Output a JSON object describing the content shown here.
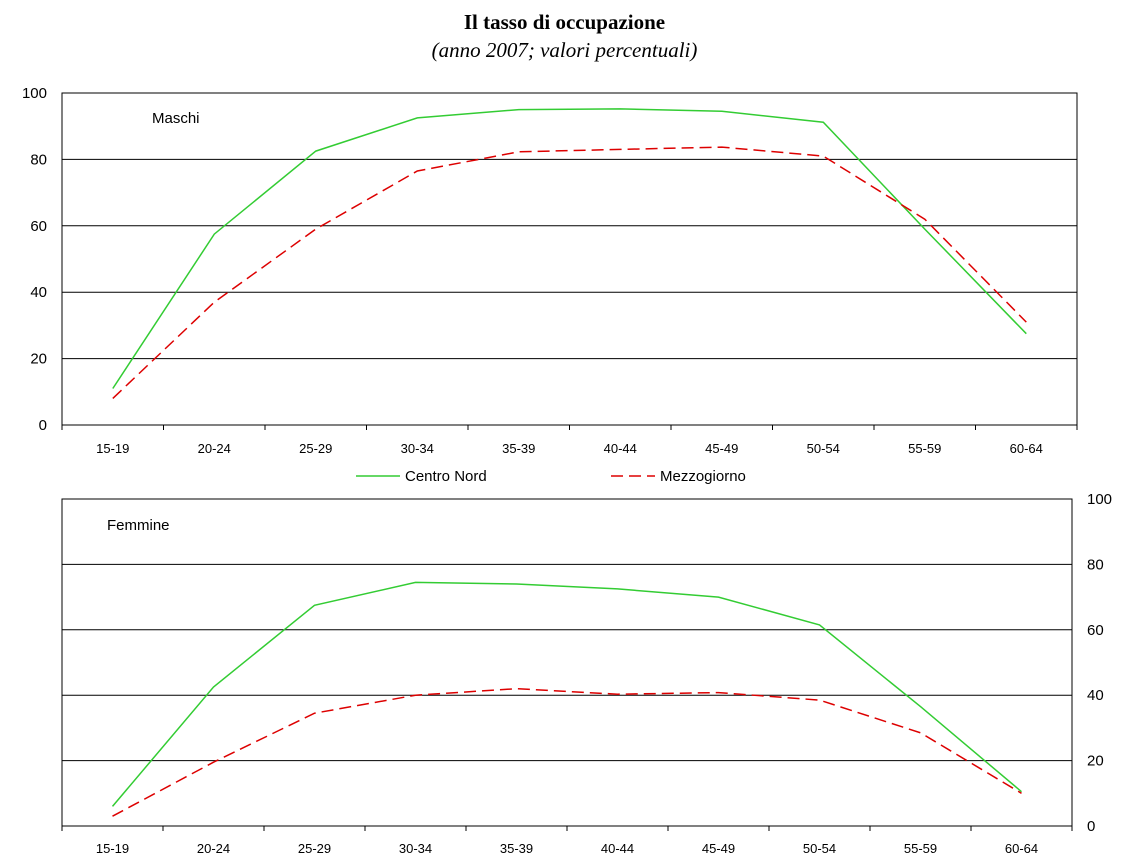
{
  "header": {
    "title": "Il tasso di occupazione",
    "subtitle": "(anno 2007; valori percentuali)"
  },
  "legend": {
    "items": [
      {
        "label": "Centro Nord",
        "color": "#33cc33",
        "dash": "solid"
      },
      {
        "label": "Mezzogiorno",
        "color": "#dd0000",
        "dash": "dashed"
      }
    ]
  },
  "chart_data": [
    {
      "type": "line",
      "panel_label": "Maschi",
      "categories": [
        "15-19",
        "20-24",
        "25-29",
        "30-34",
        "35-39",
        "40-44",
        "45-49",
        "50-54",
        "55-59",
        "60-64"
      ],
      "ylim": [
        0,
        100
      ],
      "yticks": [
        "0",
        "20",
        "40",
        "60",
        "80",
        "100"
      ],
      "y_axis_side": "left",
      "grid": true,
      "legend": "bottom",
      "series": [
        {
          "name": "Centro Nord",
          "color": "#33cc33",
          "dash": "solid",
          "values": [
            11,
            57.5,
            82.5,
            92.5,
            95,
            95.2,
            94.5,
            91.2,
            59,
            27.5
          ]
        },
        {
          "name": "Mezzogiorno",
          "color": "#dd0000",
          "dash": "dashed",
          "values": [
            8,
            37,
            59,
            76.5,
            82.3,
            83,
            83.7,
            81,
            62,
            31
          ]
        }
      ]
    },
    {
      "type": "line",
      "panel_label": "Femmine",
      "categories": [
        "15-19",
        "20-24",
        "25-29",
        "30-34",
        "35-39",
        "40-44",
        "45-49",
        "50-54",
        "55-59",
        "60-64"
      ],
      "ylim": [
        0,
        100
      ],
      "yticks": [
        "0",
        "20",
        "40",
        "60",
        "80",
        "100"
      ],
      "y_axis_side": "right",
      "grid": true,
      "series": [
        {
          "name": "Centro Nord",
          "color": "#33cc33",
          "dash": "solid",
          "values": [
            6,
            42.5,
            67.5,
            74.5,
            74,
            72.5,
            70,
            61.5,
            36.5,
            10.5
          ]
        },
        {
          "name": "Mezzogiorno",
          "color": "#dd0000",
          "dash": "dashed",
          "values": [
            3,
            19.5,
            34.5,
            40,
            42,
            40.3,
            40.8,
            38.5,
            28.5,
            10
          ]
        }
      ]
    }
  ]
}
